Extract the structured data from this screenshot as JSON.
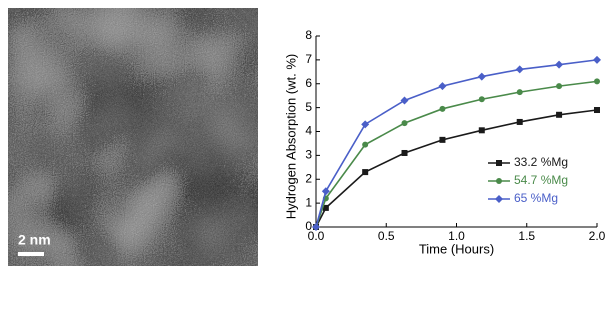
{
  "image": {
    "scale_bar": "2 nm"
  },
  "chart_data": {
    "type": "line",
    "x_label": "Time (Hours)",
    "y_label": "Hydrogen Absorption (wt. %)",
    "x": [
      0,
      0.07,
      0.35,
      0.63,
      0.9,
      1.18,
      1.45,
      1.73,
      2.0
    ],
    "series": [
      {
        "name": "33.2 %Mg",
        "color": "#1a1a1a",
        "marker": "square",
        "values": [
          0,
          0.8,
          2.3,
          3.1,
          3.65,
          4.05,
          4.4,
          4.7,
          4.9
        ]
      },
      {
        "name": "54.7 %Mg",
        "color": "#4a8a4a",
        "marker": "circle",
        "values": [
          0,
          1.2,
          3.45,
          4.35,
          4.95,
          5.35,
          5.65,
          5.9,
          6.1
        ]
      },
      {
        "name": "65 %Mg",
        "color": "#4a5fc8",
        "marker": "diamond",
        "values": [
          0,
          1.5,
          4.3,
          5.3,
          5.9,
          6.3,
          6.6,
          6.8,
          7.0
        ]
      }
    ],
    "xlim": [
      0,
      2.0
    ],
    "xticks": [
      {
        "value": 0,
        "label": "0.0"
      },
      {
        "value": 0.5,
        "label": "0.5"
      },
      {
        "value": 1,
        "label": "1.0"
      },
      {
        "value": 1.5,
        "label": "1.5"
      },
      {
        "value": 2,
        "label": "2.0"
      }
    ],
    "ylim": [
      0,
      8
    ],
    "yticks": [
      0,
      1,
      2,
      3,
      4,
      5,
      6,
      7,
      8
    ],
    "legend": "lower-right",
    "grid": false
  }
}
